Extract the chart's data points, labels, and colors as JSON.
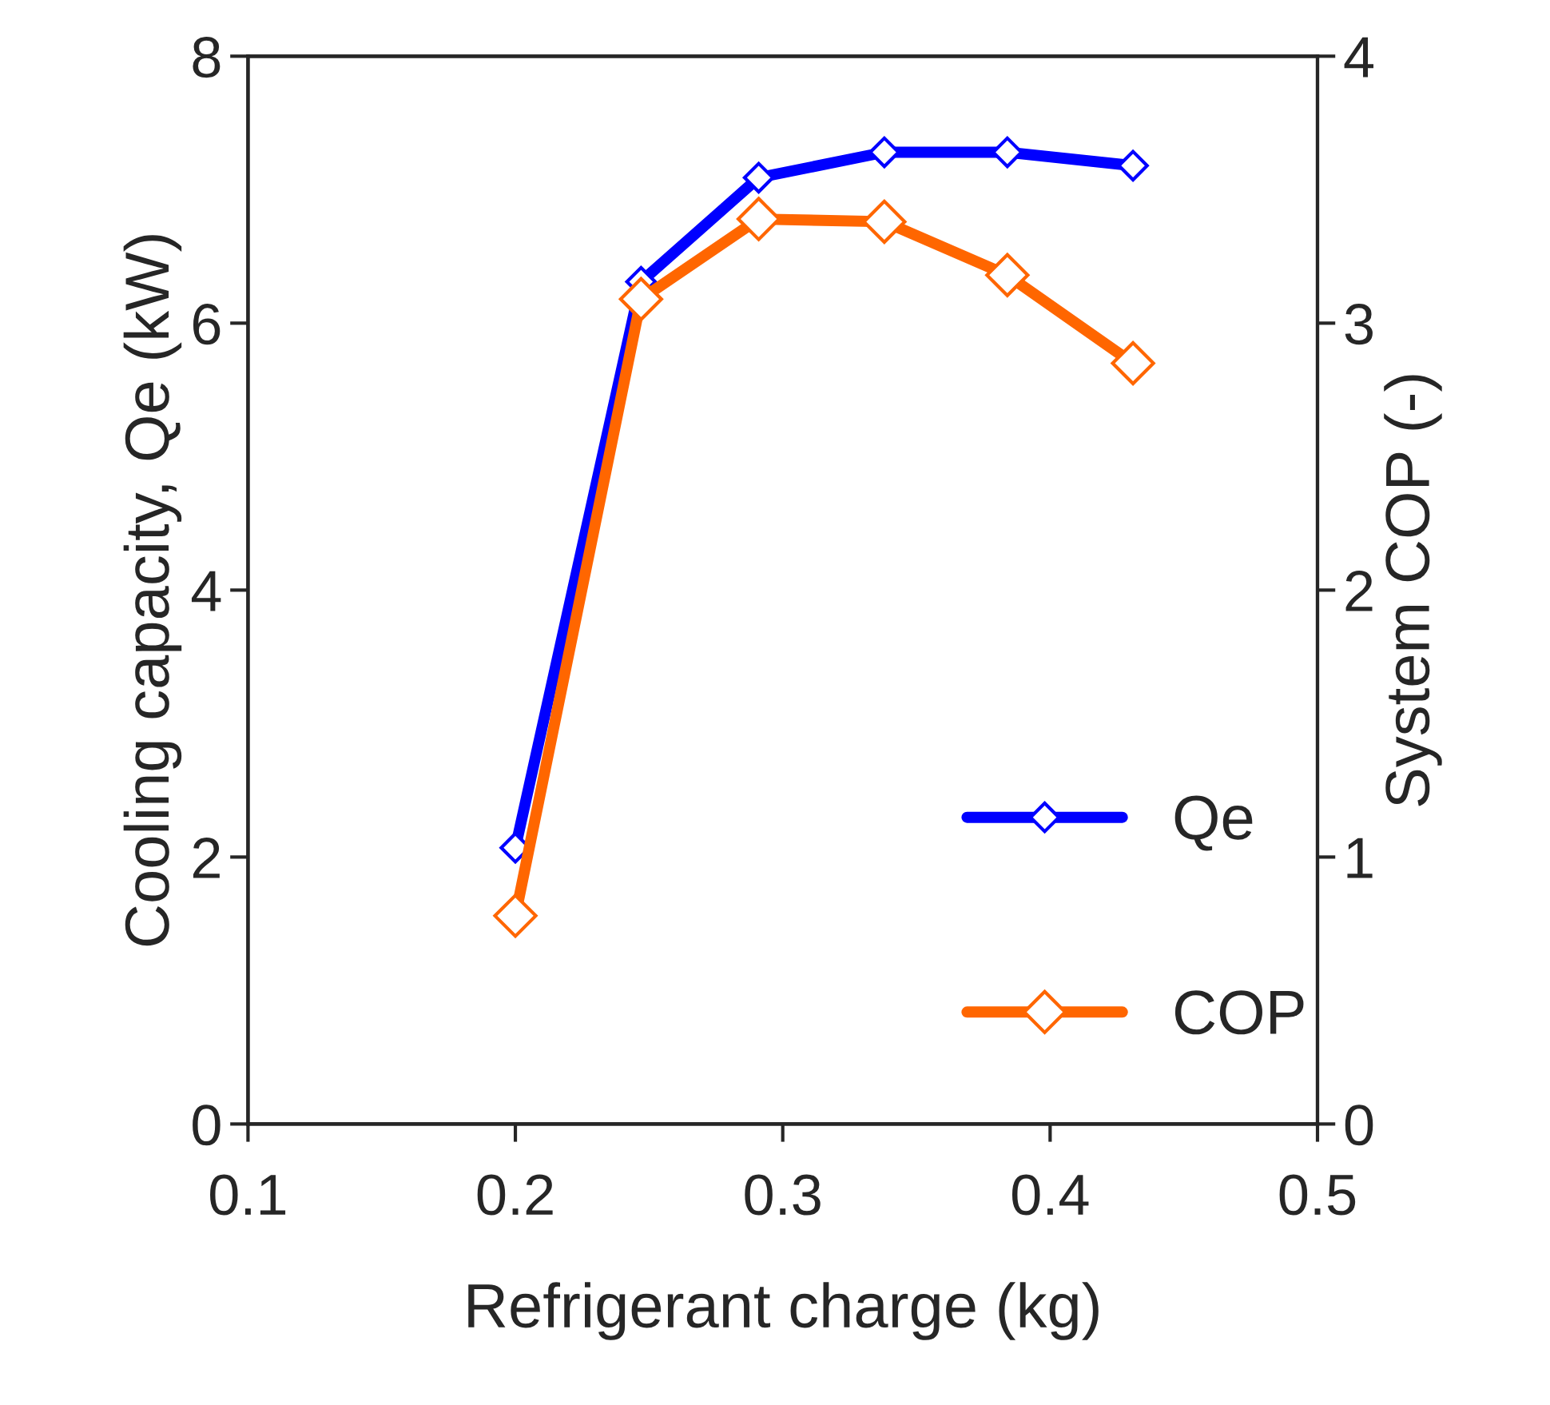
{
  "chart_data": {
    "type": "line",
    "xlabel": "Refrigerant charge (kg)",
    "ylabel": "Cooling capacity, Qe (kW)",
    "y2label": "System COP (-)",
    "x": [
      0.2,
      0.247,
      0.291,
      0.338,
      0.384,
      0.431
    ],
    "series": [
      {
        "name": "Qe",
        "color": "#0000ff",
        "values": [
          2.07,
          6.31,
          7.09,
          7.28,
          7.28,
          7.18
        ]
      },
      {
        "name": "COP",
        "color": "#ff6600",
        "axis": "y2",
        "values": [
          0.78,
          3.09,
          3.39,
          3.38,
          3.18,
          2.85
        ]
      }
    ],
    "xlim": [
      0.1,
      0.5
    ],
    "xticks": [
      0.1,
      0.2,
      0.3,
      0.4,
      0.5
    ],
    "ylim": [
      0,
      8
    ],
    "yticks": [
      0,
      2,
      4,
      6,
      8
    ],
    "y2lim": [
      0,
      4
    ],
    "y2ticks": [
      0,
      1,
      2,
      3,
      4
    ],
    "marker": "diamond",
    "line_style": "solid",
    "grid": false,
    "legend": "bottom right"
  }
}
